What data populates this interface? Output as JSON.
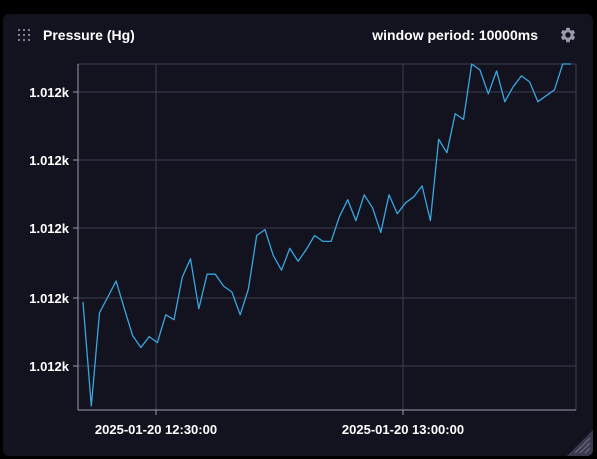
{
  "panel": {
    "title": "Pressure (Hg)",
    "window_period": "window period: 10000ms",
    "drag_icon": "drag-dots-icon",
    "settings_icon": "gear-icon",
    "resize_icon": "resize-corner-icon"
  },
  "colors": {
    "panel_bg": "#131320",
    "page_bg": "#000000",
    "grid": "#3c3c52",
    "axis": "#9a9aae",
    "line": "#3aa6e0",
    "text": "#ffffff"
  },
  "chart_data": {
    "type": "line",
    "title": "Pressure (Hg)",
    "xlabel": "",
    "ylabel": "",
    "grid": true,
    "y_tick_labels": [
      "1.012k",
      "1.012k",
      "1.012k",
      "1.012k",
      "1.012k"
    ],
    "x_tick_labels": [
      "2025-01-20 12:30:00",
      "2025-01-20 13:00:00"
    ],
    "series": [
      {
        "values": [
          0.3045,
          0.0,
          0.2725,
          0.3188,
          0.3652,
          0.2841,
          0.2058,
          0.171,
          0.2029,
          0.1855,
          0.2667,
          0.2522,
          0.3768,
          0.4304,
          0.2841,
          0.3855,
          0.3855,
          0.3507,
          0.3333,
          0.2667,
          0.342,
          0.4986,
          0.5159,
          0.4406,
          0.3971,
          0.4609,
          0.4232,
          0.458,
          0.4986,
          0.4812,
          0.4812,
          0.5536,
          0.6029,
          0.542,
          0.6174,
          0.5797,
          0.5072,
          0.6174,
          0.5623,
          0.5942,
          0.6116,
          0.6435,
          0.542,
          0.7797,
          0.7406,
          0.8551,
          0.8377,
          1.0,
          0.9826,
          0.913,
          0.9797,
          0.8899,
          0.9333,
          0.9652,
          0.9478,
          0.8899,
          0.9072,
          0.9246,
          1.0,
          1.0
        ]
      }
    ]
  }
}
